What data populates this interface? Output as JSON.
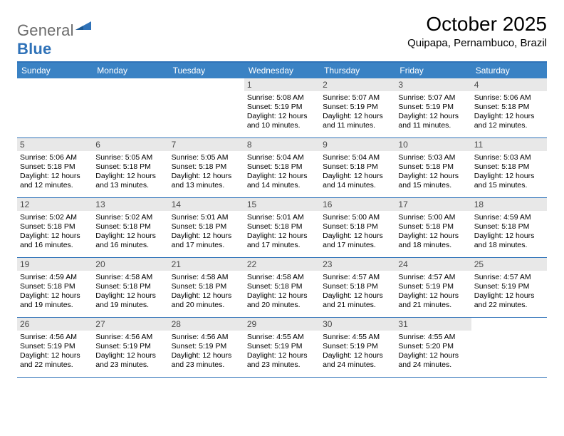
{
  "logo": {
    "text1": "General",
    "text2": "Blue"
  },
  "title": "October 2025",
  "location": "Quipapa, Pernambuco, Brazil",
  "weekdays": [
    "Sunday",
    "Monday",
    "Tuesday",
    "Wednesday",
    "Thursday",
    "Friday",
    "Saturday"
  ],
  "colors": {
    "header_bg": "#3a82c4",
    "border": "#2f72b8",
    "daynum_bg": "#e8e8e8",
    "logo_gray": "#6b6b6b",
    "logo_blue": "#2f72b8"
  },
  "grid": [
    [
      null,
      null,
      null,
      {
        "n": "1",
        "sr": "5:08 AM",
        "ss": "5:19 PM",
        "dl": "12 hours and 10 minutes."
      },
      {
        "n": "2",
        "sr": "5:07 AM",
        "ss": "5:19 PM",
        "dl": "12 hours and 11 minutes."
      },
      {
        "n": "3",
        "sr": "5:07 AM",
        "ss": "5:19 PM",
        "dl": "12 hours and 11 minutes."
      },
      {
        "n": "4",
        "sr": "5:06 AM",
        "ss": "5:18 PM",
        "dl": "12 hours and 12 minutes."
      }
    ],
    [
      {
        "n": "5",
        "sr": "5:06 AM",
        "ss": "5:18 PM",
        "dl": "12 hours and 12 minutes."
      },
      {
        "n": "6",
        "sr": "5:05 AM",
        "ss": "5:18 PM",
        "dl": "12 hours and 13 minutes."
      },
      {
        "n": "7",
        "sr": "5:05 AM",
        "ss": "5:18 PM",
        "dl": "12 hours and 13 minutes."
      },
      {
        "n": "8",
        "sr": "5:04 AM",
        "ss": "5:18 PM",
        "dl": "12 hours and 14 minutes."
      },
      {
        "n": "9",
        "sr": "5:04 AM",
        "ss": "5:18 PM",
        "dl": "12 hours and 14 minutes."
      },
      {
        "n": "10",
        "sr": "5:03 AM",
        "ss": "5:18 PM",
        "dl": "12 hours and 15 minutes."
      },
      {
        "n": "11",
        "sr": "5:03 AM",
        "ss": "5:18 PM",
        "dl": "12 hours and 15 minutes."
      }
    ],
    [
      {
        "n": "12",
        "sr": "5:02 AM",
        "ss": "5:18 PM",
        "dl": "12 hours and 16 minutes."
      },
      {
        "n": "13",
        "sr": "5:02 AM",
        "ss": "5:18 PM",
        "dl": "12 hours and 16 minutes."
      },
      {
        "n": "14",
        "sr": "5:01 AM",
        "ss": "5:18 PM",
        "dl": "12 hours and 17 minutes."
      },
      {
        "n": "15",
        "sr": "5:01 AM",
        "ss": "5:18 PM",
        "dl": "12 hours and 17 minutes."
      },
      {
        "n": "16",
        "sr": "5:00 AM",
        "ss": "5:18 PM",
        "dl": "12 hours and 17 minutes."
      },
      {
        "n": "17",
        "sr": "5:00 AM",
        "ss": "5:18 PM",
        "dl": "12 hours and 18 minutes."
      },
      {
        "n": "18",
        "sr": "4:59 AM",
        "ss": "5:18 PM",
        "dl": "12 hours and 18 minutes."
      }
    ],
    [
      {
        "n": "19",
        "sr": "4:59 AM",
        "ss": "5:18 PM",
        "dl": "12 hours and 19 minutes."
      },
      {
        "n": "20",
        "sr": "4:58 AM",
        "ss": "5:18 PM",
        "dl": "12 hours and 19 minutes."
      },
      {
        "n": "21",
        "sr": "4:58 AM",
        "ss": "5:18 PM",
        "dl": "12 hours and 20 minutes."
      },
      {
        "n": "22",
        "sr": "4:58 AM",
        "ss": "5:18 PM",
        "dl": "12 hours and 20 minutes."
      },
      {
        "n": "23",
        "sr": "4:57 AM",
        "ss": "5:18 PM",
        "dl": "12 hours and 21 minutes."
      },
      {
        "n": "24",
        "sr": "4:57 AM",
        "ss": "5:19 PM",
        "dl": "12 hours and 21 minutes."
      },
      {
        "n": "25",
        "sr": "4:57 AM",
        "ss": "5:19 PM",
        "dl": "12 hours and 22 minutes."
      }
    ],
    [
      {
        "n": "26",
        "sr": "4:56 AM",
        "ss": "5:19 PM",
        "dl": "12 hours and 22 minutes."
      },
      {
        "n": "27",
        "sr": "4:56 AM",
        "ss": "5:19 PM",
        "dl": "12 hours and 23 minutes."
      },
      {
        "n": "28",
        "sr": "4:56 AM",
        "ss": "5:19 PM",
        "dl": "12 hours and 23 minutes."
      },
      {
        "n": "29",
        "sr": "4:55 AM",
        "ss": "5:19 PM",
        "dl": "12 hours and 23 minutes."
      },
      {
        "n": "30",
        "sr": "4:55 AM",
        "ss": "5:19 PM",
        "dl": "12 hours and 24 minutes."
      },
      {
        "n": "31",
        "sr": "4:55 AM",
        "ss": "5:20 PM",
        "dl": "12 hours and 24 minutes."
      },
      null
    ]
  ],
  "labels": {
    "sunrise": "Sunrise:",
    "sunset": "Sunset:",
    "daylight": "Daylight:"
  }
}
